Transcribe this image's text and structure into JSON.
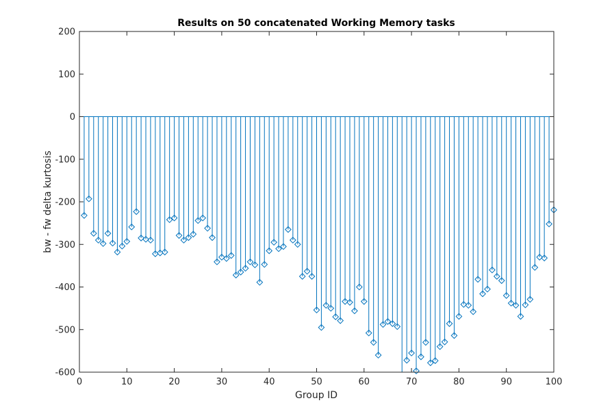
{
  "chart_data": {
    "type": "stem",
    "title": "Results on 50 concatenated Working Memory tasks",
    "xlabel": "Group ID",
    "ylabel": "bw - fw delta kurtosis",
    "xlim": [
      0,
      100
    ],
    "ylim": [
      -600,
      200
    ],
    "xticks": [
      0,
      10,
      20,
      30,
      40,
      50,
      60,
      70,
      80,
      90,
      100
    ],
    "yticks": [
      -600,
      -500,
      -400,
      -300,
      -200,
      -100,
      0,
      100,
      200
    ],
    "grid": false,
    "line_color": "#0072BD",
    "baseline": 0,
    "x": [
      1,
      2,
      3,
      4,
      5,
      6,
      7,
      8,
      9,
      10,
      11,
      12,
      13,
      14,
      15,
      16,
      17,
      18,
      19,
      20,
      21,
      22,
      23,
      24,
      25,
      26,
      27,
      28,
      29,
      30,
      31,
      32,
      33,
      34,
      35,
      36,
      37,
      38,
      39,
      40,
      41,
      42,
      43,
      44,
      45,
      46,
      47,
      48,
      49,
      50,
      51,
      52,
      53,
      54,
      55,
      56,
      57,
      58,
      59,
      60,
      61,
      62,
      63,
      64,
      65,
      66,
      67,
      68,
      69,
      70,
      71,
      72,
      73,
      74,
      75,
      76,
      77,
      78,
      79,
      80,
      81,
      82,
      83,
      84,
      85,
      86,
      87,
      88,
      89,
      90,
      91,
      92,
      93,
      94,
      95,
      96,
      97,
      98,
      99,
      100
    ],
    "y": [
      -232,
      -193,
      -274,
      -290,
      -298,
      -274,
      -297,
      -318,
      -304,
      -293,
      -259,
      -223,
      -285,
      -288,
      -290,
      -322,
      -320,
      -318,
      -242,
      -238,
      -279,
      -290,
      -284,
      -276,
      -244,
      -238,
      -262,
      -284,
      -341,
      -330,
      -333,
      -326,
      -372,
      -365,
      -356,
      -341,
      -348,
      -389,
      -347,
      -315,
      -295,
      -310,
      -305,
      -265,
      -290,
      -300,
      -375,
      -363,
      -375,
      -454,
      -495,
      -443,
      -450,
      -470,
      -479,
      -434,
      -436,
      -456,
      -400,
      -434,
      -508,
      -530,
      -560,
      -488,
      -481,
      -486,
      -493,
      -615,
      -572,
      -555,
      -597,
      -564,
      -530,
      -578,
      -573,
      -540,
      -529,
      -486,
      -514,
      -469,
      -441,
      -443,
      -458,
      -382,
      -416,
      -405,
      -360,
      -375,
      -385,
      -420,
      -438,
      -443,
      -469,
      -442,
      -429,
      -354,
      -330,
      -332,
      -252,
      -219
    ]
  }
}
